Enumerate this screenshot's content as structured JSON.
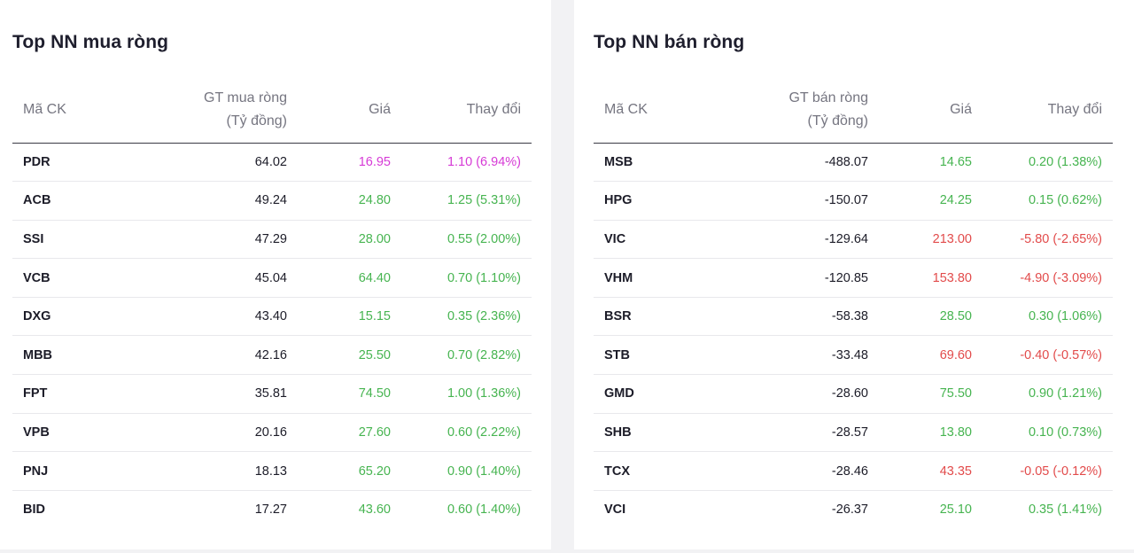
{
  "colors": {
    "up": "#46b450",
    "down": "#e24b4b",
    "ceiling": "#d63ad6"
  },
  "buy": {
    "title": "Top NN mua ròng",
    "headers": {
      "symbol": "Mã CK",
      "value_line1": "GT mua ròng",
      "value_line2": "(Tỷ đồng)",
      "price": "Giá",
      "change": "Thay đổi"
    },
    "rows": [
      {
        "symbol": "PDR",
        "value": "64.02",
        "price": "16.95",
        "change": "1.10 (6.94%)",
        "trend": "ceiling"
      },
      {
        "symbol": "ACB",
        "value": "49.24",
        "price": "24.80",
        "change": "1.25 (5.31%)",
        "trend": "up"
      },
      {
        "symbol": "SSI",
        "value": "47.29",
        "price": "28.00",
        "change": "0.55 (2.00%)",
        "trend": "up"
      },
      {
        "symbol": "VCB",
        "value": "45.04",
        "price": "64.40",
        "change": "0.70 (1.10%)",
        "trend": "up"
      },
      {
        "symbol": "DXG",
        "value": "43.40",
        "price": "15.15",
        "change": "0.35 (2.36%)",
        "trend": "up"
      },
      {
        "symbol": "MBB",
        "value": "42.16",
        "price": "25.50",
        "change": "0.70 (2.82%)",
        "trend": "up"
      },
      {
        "symbol": "FPT",
        "value": "35.81",
        "price": "74.50",
        "change": "1.00 (1.36%)",
        "trend": "up"
      },
      {
        "symbol": "VPB",
        "value": "20.16",
        "price": "27.60",
        "change": "0.60 (2.22%)",
        "trend": "up"
      },
      {
        "symbol": "PNJ",
        "value": "18.13",
        "price": "65.20",
        "change": "0.90 (1.40%)",
        "trend": "up"
      },
      {
        "symbol": "BID",
        "value": "17.27",
        "price": "43.60",
        "change": "0.60 (1.40%)",
        "trend": "up"
      }
    ]
  },
  "sell": {
    "title": "Top NN bán ròng",
    "headers": {
      "symbol": "Mã CK",
      "value_line1": "GT bán ròng",
      "value_line2": "(Tỷ đồng)",
      "price": "Giá",
      "change": "Thay đổi"
    },
    "rows": [
      {
        "symbol": "MSB",
        "value": "-488.07",
        "price": "14.65",
        "change": "0.20 (1.38%)",
        "trend": "up"
      },
      {
        "symbol": "HPG",
        "value": "-150.07",
        "price": "24.25",
        "change": "0.15 (0.62%)",
        "trend": "up"
      },
      {
        "symbol": "VIC",
        "value": "-129.64",
        "price": "213.00",
        "change": "-5.80 (-2.65%)",
        "trend": "down"
      },
      {
        "symbol": "VHM",
        "value": "-120.85",
        "price": "153.80",
        "change": "-4.90 (-3.09%)",
        "trend": "down"
      },
      {
        "symbol": "BSR",
        "value": "-58.38",
        "price": "28.50",
        "change": "0.30 (1.06%)",
        "trend": "up"
      },
      {
        "symbol": "STB",
        "value": "-33.48",
        "price": "69.60",
        "change": "-0.40 (-0.57%)",
        "trend": "down"
      },
      {
        "symbol": "GMD",
        "value": "-28.60",
        "price": "75.50",
        "change": "0.90 (1.21%)",
        "trend": "up"
      },
      {
        "symbol": "SHB",
        "value": "-28.57",
        "price": "13.80",
        "change": "0.10 (0.73%)",
        "trend": "up"
      },
      {
        "symbol": "TCX",
        "value": "-28.46",
        "price": "43.35",
        "change": "-0.05 (-0.12%)",
        "trend": "down"
      },
      {
        "symbol": "VCI",
        "value": "-26.37",
        "price": "25.10",
        "change": "0.35 (1.41%)",
        "trend": "up"
      }
    ]
  }
}
